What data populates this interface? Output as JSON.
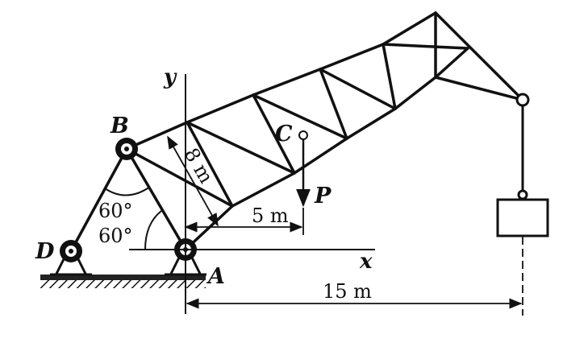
{
  "labels": {
    "y_axis": "y",
    "x_axis": "x",
    "point_b": "B",
    "point_c": "C",
    "point_d": "D",
    "point_a": "A",
    "load": "P",
    "angle_upper": "60°",
    "angle_lower": "60°",
    "dim_8m": "8 m",
    "dim_5m": "5 m",
    "dim_15m": "15 m"
  },
  "colors": {
    "ink": "#111111",
    "ground_fill": "#222222",
    "paper": "#ffffff"
  }
}
